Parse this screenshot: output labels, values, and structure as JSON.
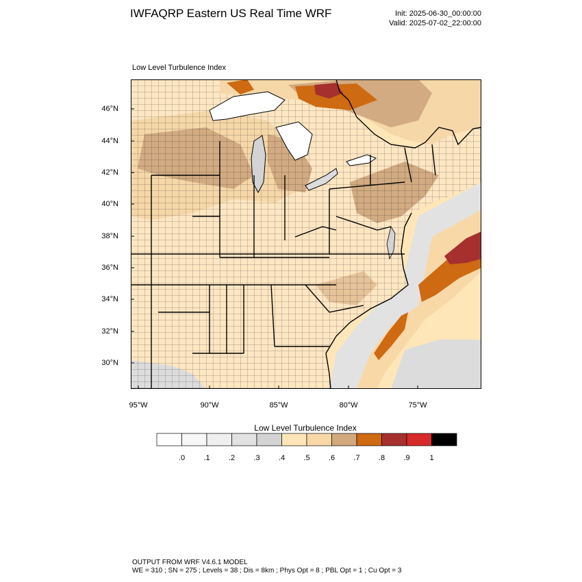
{
  "header": {
    "title": "IWFAQRP Eastern US Real Time WRF",
    "init": "Init: 2025-06-30_00:00:00",
    "valid": "Valid: 2025-07-02_22:00:00"
  },
  "plot": {
    "title": "Low Level Turbulence Index",
    "lat_labels": [
      "46°N",
      "44°N",
      "42°N",
      "40°N",
      "38°N",
      "36°N",
      "34°N",
      "32°N",
      "30°N"
    ],
    "lon_labels": [
      "95°W",
      "90°W",
      "85°W",
      "80°W",
      "75°W"
    ]
  },
  "colorbar": {
    "title": "Low Level Turbulence Index",
    "labels": [
      ".0",
      ".1",
      ".2",
      ".3",
      ".4",
      ".5",
      ".6",
      ".7",
      ".8",
      ".9",
      "1"
    ],
    "colors": [
      "#ffffff",
      "#f7f7f7",
      "#efefef",
      "#e2e2e2",
      "#d3d3d3",
      "#ffe6b8",
      "#f9d8a8",
      "#d2a97c",
      "#cd6a12",
      "#a6302e",
      "#d62a2a",
      "#000000"
    ]
  },
  "map_colors": {
    "land_base": "#fde6c2",
    "land_mid": "#f5d7a8",
    "land_dark": "#d2ab82",
    "water": "#ffffff",
    "gray": "#dcdcdc",
    "orange": "#cd6a12",
    "red": "#a6302e"
  },
  "footer": {
    "line1": "OUTPUT FROM WRF V4.6.1 MODEL",
    "line2": "WE = 310 ; SN = 275 ; Levels = 38 ; Dis = 8km ; Phys Opt = 8 ; PBL Opt = 1 ; Cu Opt = 3"
  }
}
